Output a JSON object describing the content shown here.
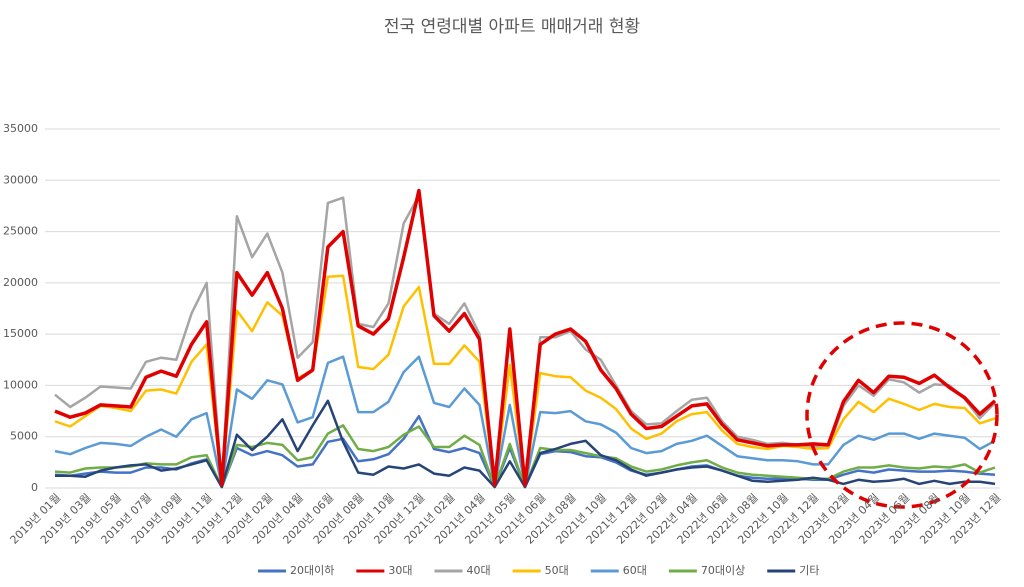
{
  "chart_data": {
    "type": "line",
    "title": "전국 연령대별 아파트 매매거래 현황",
    "categories": [
      "2019년 01월",
      null,
      "2019년 03월",
      null,
      "2019년 05월",
      null,
      "2019년 07월",
      null,
      "2019년 09월",
      null,
      "2019년 11월",
      null,
      "2019년 12월",
      null,
      "2020년 02월",
      null,
      "2020년 04월",
      null,
      "2020년 06월",
      null,
      "2020년 08월",
      null,
      "2020년 10월",
      null,
      "2020년 12월",
      null,
      "2021년 02월",
      null,
      "2021년 04월",
      null,
      "2021년 05월",
      null,
      "2021년 06월",
      null,
      "2021년 08월",
      null,
      "2021년 10월",
      null,
      "2021년 12월",
      null,
      "2022년 02월",
      null,
      "2022년 04월",
      null,
      "2022년 06월",
      null,
      "2022년 08월",
      null,
      "2022년 10월",
      null,
      "2022년 12월",
      null,
      "2023년 02월",
      null,
      "2023년 04월",
      null,
      "2023년 06월",
      null,
      "2023년 08월",
      null,
      "2023년 10월",
      null,
      "2023년 12월"
    ],
    "series": [
      {
        "name": "20대이하",
        "color": "#4472c4",
        "values": [
          1300,
          1200,
          1400,
          1600,
          1500,
          1500,
          2000,
          2000,
          1800,
          2400,
          2800,
          100,
          3900,
          3200,
          3600,
          3200,
          2100,
          2300,
          4500,
          4800,
          2600,
          2800,
          3300,
          4800,
          7000,
          3800,
          3500,
          3900,
          3400,
          100,
          3900,
          100,
          3300,
          3600,
          3500,
          3100,
          3000,
          2500,
          1700,
          1300,
          1500,
          1800,
          2100,
          2200,
          1700,
          1200,
          1000,
          900,
          900,
          900,
          800,
          800,
          1300,
          1700,
          1500,
          1800,
          1700,
          1600,
          1600,
          1700,
          1600,
          1400,
          1300
        ]
      },
      {
        "name": "30대",
        "color": "#e00000",
        "values": [
          7500,
          6900,
          7300,
          8100,
          8000,
          7900,
          10800,
          11400,
          10900,
          14000,
          16200,
          300,
          21000,
          18800,
          21000,
          17500,
          10500,
          11500,
          23500,
          25000,
          15800,
          15000,
          16500,
          22500,
          29000,
          16800,
          15300,
          17000,
          14500,
          300,
          15500,
          300,
          14000,
          15000,
          15500,
          14300,
          11500,
          9700,
          7200,
          5800,
          6000,
          7000,
          8000,
          8200,
          6200,
          4700,
          4400,
          4100,
          4200,
          4200,
          4300,
          4200,
          8400,
          10500,
          9300,
          10900,
          10800,
          10200,
          11000,
          9800,
          8800,
          7200,
          8500
        ]
      },
      {
        "name": "40대",
        "color": "#a5a5a5",
        "values": [
          9100,
          7900,
          8800,
          9900,
          9800,
          9700,
          12300,
          12700,
          12500,
          17000,
          20000,
          300,
          26500,
          22500,
          24800,
          21000,
          12700,
          14200,
          27800,
          28300,
          16000,
          15700,
          18000,
          25800,
          28500,
          17000,
          16000,
          18000,
          15000,
          300,
          15200,
          300,
          14700,
          14700,
          15300,
          13500,
          12500,
          10000,
          7500,
          6200,
          6300,
          7500,
          8600,
          8800,
          6500,
          5000,
          4700,
          4300,
          4400,
          4200,
          4000,
          3900,
          8000,
          10000,
          9000,
          10600,
          10300,
          9300,
          10100,
          10000,
          8700,
          6800,
          8300
        ]
      },
      {
        "name": "50대",
        "color": "#ffc000",
        "values": [
          6500,
          6000,
          7000,
          8000,
          7800,
          7500,
          9500,
          9600,
          9200,
          12300,
          14000,
          200,
          17300,
          15300,
          18100,
          16800,
          10700,
          11500,
          20600,
          20700,
          11800,
          11600,
          13000,
          17700,
          19600,
          12100,
          12100,
          13900,
          12300,
          200,
          12000,
          200,
          11200,
          10900,
          10800,
          9500,
          8800,
          7700,
          5800,
          4800,
          5300,
          6500,
          7200,
          7400,
          5600,
          4300,
          4000,
          3800,
          4100,
          4000,
          3800,
          3900,
          6700,
          8400,
          7400,
          8700,
          8200,
          7600,
          8200,
          7900,
          7800,
          6300,
          6800
        ]
      },
      {
        "name": "60대",
        "color": "#5b9bd5",
        "values": [
          3600,
          3300,
          3900,
          4400,
          4300,
          4100,
          5000,
          5700,
          5000,
          6700,
          7300,
          200,
          9600,
          8700,
          10500,
          10100,
          6400,
          6900,
          12200,
          12800,
          7400,
          7400,
          8400,
          11300,
          12800,
          8300,
          7900,
          9700,
          8100,
          200,
          8100,
          200,
          7400,
          7300,
          7500,
          6500,
          6200,
          5400,
          3900,
          3400,
          3600,
          4300,
          4600,
          5100,
          4100,
          3100,
          2900,
          2700,
          2700,
          2600,
          2300,
          2300,
          4200,
          5100,
          4700,
          5300,
          5300,
          4800,
          5300,
          5100,
          4900,
          3800,
          4600
        ]
      },
      {
        "name": "70대이상",
        "color": "#70ad47",
        "values": [
          1600,
          1500,
          1900,
          2000,
          2000,
          2100,
          2400,
          2300,
          2300,
          3000,
          3200,
          100,
          4200,
          4000,
          4400,
          4200,
          2700,
          3000,
          5300,
          6100,
          3800,
          3600,
          4000,
          5200,
          6000,
          4000,
          4000,
          5100,
          4200,
          100,
          4300,
          100,
          3900,
          3700,
          3700,
          3400,
          3100,
          2900,
          2100,
          1600,
          1800,
          2200,
          2500,
          2700,
          2000,
          1500,
          1300,
          1200,
          1100,
          1000,
          900,
          900,
          1600,
          2000,
          2000,
          2200,
          2000,
          1900,
          2100,
          2000,
          2300,
          1500,
          2000
        ]
      },
      {
        "name": "기타",
        "color": "#264478",
        "values": [
          1200,
          1200,
          1100,
          1700,
          2000,
          2200,
          2300,
          1700,
          1900,
          2300,
          2700,
          100,
          5200,
          3700,
          5000,
          6700,
          3600,
          6100,
          8500,
          4500,
          1500,
          1300,
          2100,
          1900,
          2300,
          1400,
          1200,
          2000,
          1700,
          100,
          2600,
          100,
          3400,
          3800,
          4300,
          4600,
          3200,
          2700,
          1800,
          1200,
          1500,
          1800,
          2000,
          2100,
          1700,
          1200,
          700,
          600,
          700,
          800,
          1000,
          800,
          400,
          800,
          600,
          700,
          900,
          400,
          700,
          400,
          600,
          600,
          400
        ]
      }
    ],
    "ylim": [
      0,
      35000
    ],
    "yticks": [
      0,
      5000,
      10000,
      15000,
      20000,
      25000,
      30000,
      35000
    ],
    "grid": true,
    "legend": "bottom"
  }
}
